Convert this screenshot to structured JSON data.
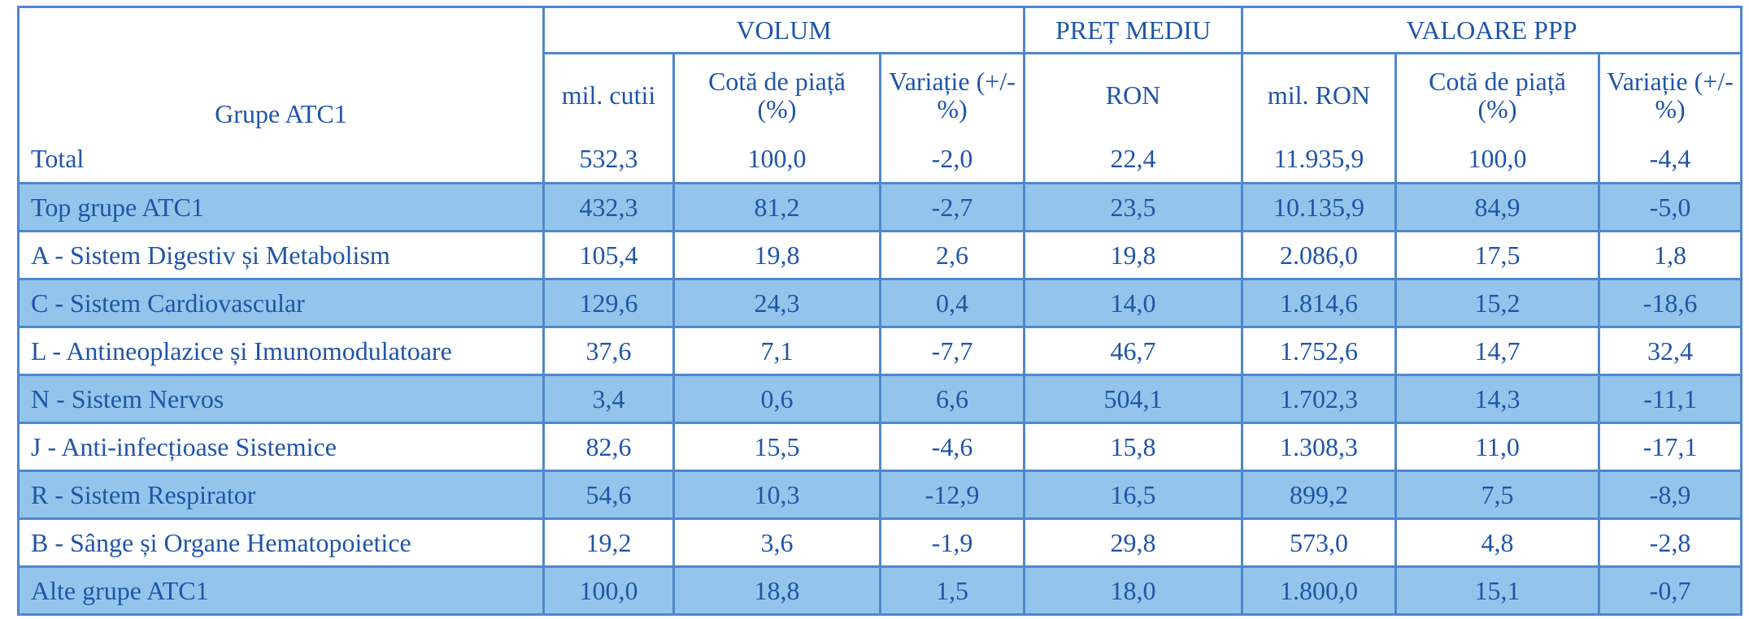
{
  "table": {
    "header": {
      "first_column": "Grupe ATC1",
      "groups": [
        {
          "label": "VOLUM",
          "subheaders": [
            "mil. cutii",
            "Cotă de piață (%)",
            "Variație (+/- %)"
          ]
        },
        {
          "label": "PREȚ MEDIU",
          "subheaders": [
            "RON"
          ]
        },
        {
          "label": "VALOARE PPP",
          "subheaders": [
            "mil. RON",
            "Cotă de piață (%)",
            "Variație (+/- %)"
          ]
        }
      ]
    },
    "rows": [
      [
        "Total",
        "532,3",
        "100,0",
        "-2,0",
        "22,4",
        "11.935,9",
        "100,0",
        "-4,4"
      ],
      [
        "Top grupe ATC1",
        "432,3",
        "81,2",
        "-2,7",
        "23,5",
        "10.135,9",
        "84,9",
        "-5,0"
      ],
      [
        "A - Sistem Digestiv și Metabolism",
        "105,4",
        "19,8",
        "2,6",
        "19,8",
        "2.086,0",
        "17,5",
        "1,8"
      ],
      [
        "C - Sistem Cardiovascular",
        "129,6",
        "24,3",
        "0,4",
        "14,0",
        "1.814,6",
        "15,2",
        "-18,6"
      ],
      [
        "L - Antineoplazice și Imunomodulatoare",
        "37,6",
        "7,1",
        "-7,7",
        "46,7",
        "1.752,6",
        "14,7",
        "32,4"
      ],
      [
        "N - Sistem Nervos",
        "3,4",
        "0,6",
        "6,6",
        "504,1",
        "1.702,3",
        "14,3",
        "-11,1"
      ],
      [
        "J - Anti-infecțioase Sistemice",
        "82,6",
        "15,5",
        "-4,6",
        "15,8",
        "1.308,3",
        "11,0",
        "-17,1"
      ],
      [
        "R - Sistem Respirator",
        "54,6",
        "10,3",
        "-12,9",
        "16,5",
        "899,2",
        "7,5",
        "-8,9"
      ],
      [
        "B - Sânge și Organe Hematopoietice",
        "19,2",
        "3,6",
        "-1,9",
        "29,8",
        "573,0",
        "4,8",
        "-2,8"
      ],
      [
        "Alte grupe ATC1",
        "100,0",
        "18,8",
        "1,5",
        "18,0",
        "1.800,0",
        "15,1",
        "-0,7"
      ]
    ]
  }
}
